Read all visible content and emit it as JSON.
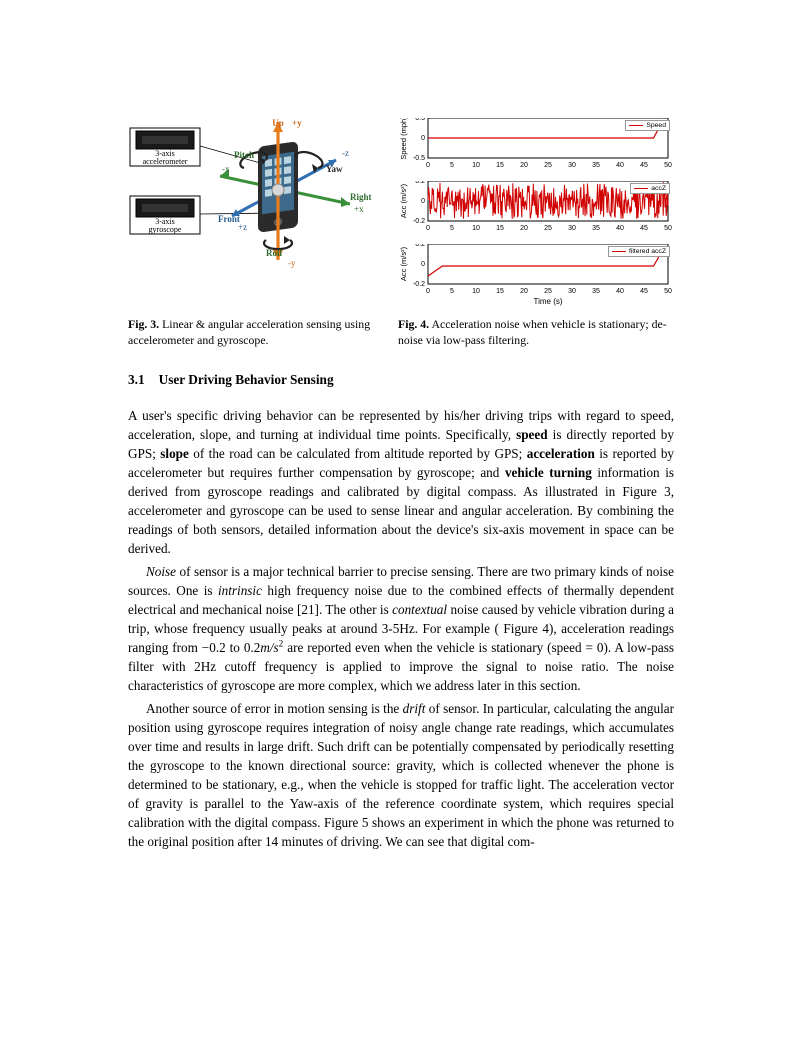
{
  "figures": {
    "left": {
      "sensor_accel_line1": "3-axis",
      "sensor_accel_line2": "accelerometer",
      "sensor_gyro_line1": "3-axis",
      "sensor_gyro_line2": "gyroscope",
      "axis_labels": {
        "up": "Up",
        "plus_y": "+y",
        "front": "Front",
        "plus_z": "+z",
        "right": "Right",
        "plus_x": "+x",
        "minus_x": "-x",
        "minus_y": "-y",
        "minus_z": "-z",
        "pitch": "Pitch",
        "yaw": "Yaw",
        "roll": "Roll"
      },
      "colors": {
        "y_axis": "#e87b1a",
        "x_axis": "#3a8f3a",
        "z_axis": "#2f6fb3",
        "phone_body": "#2b2b2b",
        "phone_screen": "#3d6a8a"
      }
    },
    "right": {
      "charts": [
        {
          "ylabel": "Speed (mph)",
          "legend": "Speed",
          "ylim": [
            -0.5,
            0.5
          ],
          "yticks": [
            -0.5,
            0,
            0.5
          ],
          "xlim": [
            0,
            50
          ],
          "xticks_step": 5,
          "line_color": "#d00000",
          "line_width": 1.2,
          "values_y": [
            0,
            0,
            0,
            0,
            0,
            0,
            0,
            0,
            0,
            0,
            0.45
          ],
          "values_x": [
            0,
            5,
            10,
            15,
            20,
            25,
            30,
            35,
            40,
            47,
            49
          ],
          "background": "#ffffff",
          "border": "#000000",
          "tick_fontsize": 7
        },
        {
          "ylabel": "Acc (m/s²)",
          "legend": "accZ",
          "ylim": [
            -0.2,
            0.2
          ],
          "yticks": [
            -0.2,
            0,
            0.2
          ],
          "xlim": [
            0,
            50
          ],
          "xticks_step": 5,
          "line_color": "#d00000",
          "line_width": 1,
          "noise_amplitude": 0.18,
          "background": "#ffffff",
          "border": "#000000",
          "tick_fontsize": 7
        },
        {
          "ylabel": "Acc (m/s²)",
          "legend": "filtered accZ",
          "ylim": [
            -0.2,
            0.2
          ],
          "yticks": [
            -0.2,
            0,
            0.2
          ],
          "xlim": [
            0,
            50
          ],
          "xticks_step": 5,
          "xlabel": "Time (s)",
          "line_color": "#d00000",
          "line_width": 1.2,
          "values_y": [
            -0.12,
            -0.02,
            -0.02,
            -0.02,
            -0.02,
            -0.02,
            -0.02,
            -0.02,
            -0.02,
            -0.02,
            0.15
          ],
          "values_x": [
            0,
            3,
            10,
            15,
            20,
            25,
            30,
            35,
            40,
            47,
            49
          ],
          "background": "#ffffff",
          "border": "#000000",
          "tick_fontsize": 7
        }
      ]
    },
    "caption_left_label": "Fig. 3.",
    "caption_left_text": " Linear & angular acceleration sensing using accelerometer and gyroscope.",
    "caption_right_label": "Fig. 4.",
    "caption_right_text": " Acceleration noise when vehicle is stationary; de-noise via low-pass filtering."
  },
  "section": {
    "number": "3.1",
    "title": "User Driving Behavior Sensing"
  },
  "paragraphs": {
    "p1_a": "A user's specific driving behavior can be represented by his/her driving trips with regard to speed, acceleration, slope, and turning at individual time points. Specifically, ",
    "p1_speed": "speed",
    "p1_b": " is directly reported by GPS; ",
    "p1_slope": "slope",
    "p1_c": " of the road can be calculated from altitude reported by GPS; ",
    "p1_accel": "acceleration",
    "p1_d": " is reported by accelerometer but requires further compensation by gyroscope; and ",
    "p1_turn": "vehicle turning",
    "p1_e": " information is derived from gyroscope readings and calibrated by digital compass. As illustrated in Figure 3, accelerometer and gyroscope can be used to sense linear and angular acceleration. By combining the readings of both sensors, detailed information about the device's six-axis movement in space can be derived.",
    "p2_noise": "Noise",
    "p2_a": " of sensor is a major technical barrier to precise sensing. There are two primary kinds of noise sources. One is ",
    "p2_intr": "intrinsic",
    "p2_b": " high frequency noise due to the combined effects of thermally dependent electrical and mechanical noise [21]. The other is ",
    "p2_ctx": "contextual",
    "p2_c": " noise caused by vehicle vibration during a trip, whose frequency usually peaks at around 3-5Hz. For example ( Figure 4), acceleration readings ranging from −0.2 to 0.2",
    "p2_unit": "m/s",
    "p2_d": " are reported even when the vehicle is stationary (speed = 0). A low-pass filter with 2Hz cutoff frequency is applied to improve the signal to noise ratio. The noise characteristics of gyroscope are more complex, which we address later in this section.",
    "p3_a": "Another source of error in motion sensing is the ",
    "p3_drift": "drift",
    "p3_b": " of sensor. In particular, calculating the angular position using gyroscope requires integration of noisy angle change rate readings, which accumulates over time and results in large drift. Such drift can be potentially compensated by periodically resetting the gyroscope to the known directional source: gravity, which is collected whenever the phone is determined to be stationary, e.g., when the vehicle is stopped for traffic light. The acceleration vector of gravity is parallel to the Yaw-axis of the reference coordinate system, which requires special calibration with the digital compass.  Figure 5 shows an experiment in which the phone was returned to the original position after 14 minutes of driving. We can see that digital com-"
  }
}
